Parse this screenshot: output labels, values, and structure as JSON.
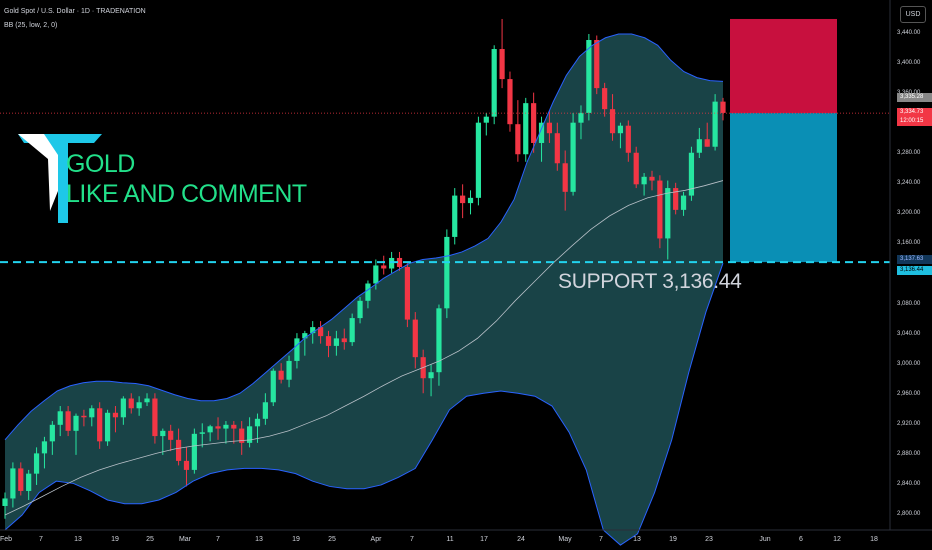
{
  "header": {
    "title": "Gold Spot / U.S. Dollar · 1D · TRADENATION",
    "indicator": "BB (25, low, 2, 0)"
  },
  "overlay": {
    "line1": "GOLD",
    "line2": "LIKE AND COMMENT",
    "support_text": "SUPPORT  3,136.44"
  },
  "axis": {
    "currency": "USD",
    "y_ticks": [
      "3,440.00",
      "3,400.00",
      "3,360.00",
      "3,280.00",
      "3,240.00",
      "3,200.00",
      "3,160.00",
      "3,080.00",
      "3,040.00",
      "3,000.00",
      "2,960.00",
      "2,920.00",
      "2,880.00",
      "2,840.00",
      "2,800.00"
    ],
    "x_ticks": [
      "Feb",
      "7",
      "13",
      "19",
      "25",
      "Mar",
      "7",
      "13",
      "19",
      "25",
      "Apr",
      "7",
      "11",
      "17",
      "24",
      "May",
      "7",
      "13",
      "19",
      "23",
      "Jun",
      "6",
      "12",
      "18"
    ]
  },
  "price_tags": {
    "current_price": "3,334.73",
    "countdown": "12:00:15",
    "upper_tag": "3,335.28",
    "band_tag": "3,137.63",
    "support_tag": "3,136.44"
  },
  "colors": {
    "bull": "#26e6a0",
    "bear": "#f23645",
    "band_fill": "#1c4a4f",
    "band_line": "#2962ff",
    "support_line": "#22d3ee",
    "stop_zone": "#c8103e",
    "target_zone": "#0a8fb5"
  },
  "chart_data": {
    "type": "candlestick",
    "title": "Gold Spot / U.S. Dollar · 1D · TRADENATION",
    "ylabel": "USD",
    "ylim": [
      2790,
      3465
    ],
    "support_level": 3136.44,
    "current_price": 3334.73,
    "position": {
      "entry": 3334.73,
      "stop": 3460,
      "target": 3136.44,
      "side": "short"
    },
    "ohlc": [
      {
        "o": 2812,
        "h": 2830,
        "l": 2795,
        "c": 2822
      },
      {
        "o": 2822,
        "h": 2870,
        "l": 2810,
        "c": 2862
      },
      {
        "o": 2862,
        "h": 2870,
        "l": 2826,
        "c": 2832
      },
      {
        "o": 2832,
        "h": 2860,
        "l": 2820,
        "c": 2855
      },
      {
        "o": 2855,
        "h": 2890,
        "l": 2840,
        "c": 2882
      },
      {
        "o": 2882,
        "h": 2904,
        "l": 2862,
        "c": 2898
      },
      {
        "o": 2898,
        "h": 2925,
        "l": 2880,
        "c": 2920
      },
      {
        "o": 2920,
        "h": 2945,
        "l": 2905,
        "c": 2938
      },
      {
        "o": 2938,
        "h": 2945,
        "l": 2905,
        "c": 2912
      },
      {
        "o": 2912,
        "h": 2935,
        "l": 2880,
        "c": 2932
      },
      {
        "o": 2932,
        "h": 2940,
        "l": 2918,
        "c": 2930
      },
      {
        "o": 2930,
        "h": 2946,
        "l": 2918,
        "c": 2942
      },
      {
        "o": 2942,
        "h": 2950,
        "l": 2888,
        "c": 2898
      },
      {
        "o": 2898,
        "h": 2940,
        "l": 2892,
        "c": 2936
      },
      {
        "o": 2936,
        "h": 2945,
        "l": 2910,
        "c": 2930
      },
      {
        "o": 2930,
        "h": 2958,
        "l": 2920,
        "c": 2955
      },
      {
        "o": 2955,
        "h": 2962,
        "l": 2935,
        "c": 2942
      },
      {
        "o": 2942,
        "h": 2958,
        "l": 2932,
        "c": 2950
      },
      {
        "o": 2950,
        "h": 2962,
        "l": 2945,
        "c": 2955
      },
      {
        "o": 2955,
        "h": 2962,
        "l": 2895,
        "c": 2905
      },
      {
        "o": 2905,
        "h": 2915,
        "l": 2880,
        "c": 2912
      },
      {
        "o": 2912,
        "h": 2920,
        "l": 2885,
        "c": 2900
      },
      {
        "o": 2900,
        "h": 2915,
        "l": 2866,
        "c": 2872
      },
      {
        "o": 2872,
        "h": 2890,
        "l": 2838,
        "c": 2860
      },
      {
        "o": 2860,
        "h": 2915,
        "l": 2855,
        "c": 2908
      },
      {
        "o": 2908,
        "h": 2922,
        "l": 2890,
        "c": 2910
      },
      {
        "o": 2910,
        "h": 2920,
        "l": 2898,
        "c": 2918
      },
      {
        "o": 2918,
        "h": 2930,
        "l": 2900,
        "c": 2915
      },
      {
        "o": 2915,
        "h": 2925,
        "l": 2895,
        "c": 2920
      },
      {
        "o": 2920,
        "h": 2925,
        "l": 2895,
        "c": 2915
      },
      {
        "o": 2915,
        "h": 2925,
        "l": 2880,
        "c": 2896
      },
      {
        "o": 2896,
        "h": 2930,
        "l": 2890,
        "c": 2918
      },
      {
        "o": 2918,
        "h": 2935,
        "l": 2896,
        "c": 2928
      },
      {
        "o": 2928,
        "h": 2962,
        "l": 2920,
        "c": 2950
      },
      {
        "o": 2950,
        "h": 2995,
        "l": 2945,
        "c": 2992
      },
      {
        "o": 2992,
        "h": 3002,
        "l": 2975,
        "c": 2980
      },
      {
        "o": 2980,
        "h": 3012,
        "l": 2970,
        "c": 3005
      },
      {
        "o": 3005,
        "h": 3042,
        "l": 2995,
        "c": 3035
      },
      {
        "o": 3035,
        "h": 3045,
        "l": 3012,
        "c": 3042
      },
      {
        "o": 3042,
        "h": 3058,
        "l": 3028,
        "c": 3050
      },
      {
        "o": 3050,
        "h": 3058,
        "l": 3028,
        "c": 3038
      },
      {
        "o": 3038,
        "h": 3045,
        "l": 3010,
        "c": 3025
      },
      {
        "o": 3025,
        "h": 3045,
        "l": 3012,
        "c": 3035
      },
      {
        "o": 3035,
        "h": 3048,
        "l": 3020,
        "c": 3030
      },
      {
        "o": 3030,
        "h": 3068,
        "l": 3025,
        "c": 3062
      },
      {
        "o": 3062,
        "h": 3090,
        "l": 3055,
        "c": 3085
      },
      {
        "o": 3085,
        "h": 3112,
        "l": 3075,
        "c": 3108
      },
      {
        "o": 3108,
        "h": 3140,
        "l": 3100,
        "c": 3132
      },
      {
        "o": 3132,
        "h": 3145,
        "l": 3120,
        "c": 3128
      },
      {
        "o": 3128,
        "h": 3150,
        "l": 3122,
        "c": 3142
      },
      {
        "o": 3142,
        "h": 3150,
        "l": 3125,
        "c": 3130
      },
      {
        "o": 3130,
        "h": 3135,
        "l": 3050,
        "c": 3060
      },
      {
        "o": 3060,
        "h": 3070,
        "l": 2995,
        "c": 3010
      },
      {
        "o": 3010,
        "h": 3020,
        "l": 2962,
        "c": 2982
      },
      {
        "o": 2982,
        "h": 3000,
        "l": 2958,
        "c": 2990
      },
      {
        "o": 2990,
        "h": 3080,
        "l": 2972,
        "c": 3075
      },
      {
        "o": 3075,
        "h": 3180,
        "l": 3062,
        "c": 3170
      },
      {
        "o": 3170,
        "h": 3235,
        "l": 3160,
        "c": 3225
      },
      {
        "o": 3225,
        "h": 3240,
        "l": 3195,
        "c": 3215
      },
      {
        "o": 3215,
        "h": 3232,
        "l": 3200,
        "c": 3222
      },
      {
        "o": 3222,
        "h": 3330,
        "l": 3212,
        "c": 3322
      },
      {
        "o": 3322,
        "h": 3335,
        "l": 3305,
        "c": 3330
      },
      {
        "o": 3330,
        "h": 3425,
        "l": 3320,
        "c": 3420
      },
      {
        "o": 3420,
        "h": 3500,
        "l": 3368,
        "c": 3380
      },
      {
        "o": 3380,
        "h": 3390,
        "l": 3310,
        "c": 3320
      },
      {
        "o": 3320,
        "h": 3352,
        "l": 3270,
        "c": 3280
      },
      {
        "o": 3280,
        "h": 3355,
        "l": 3270,
        "c": 3348
      },
      {
        "o": 3348,
        "h": 3362,
        "l": 3282,
        "c": 3295
      },
      {
        "o": 3295,
        "h": 3330,
        "l": 3270,
        "c": 3322
      },
      {
        "o": 3322,
        "h": 3338,
        "l": 3295,
        "c": 3308
      },
      {
        "o": 3308,
        "h": 3322,
        "l": 3258,
        "c": 3268
      },
      {
        "o": 3268,
        "h": 3285,
        "l": 3205,
        "c": 3230
      },
      {
        "o": 3230,
        "h": 3335,
        "l": 3225,
        "c": 3322
      },
      {
        "o": 3322,
        "h": 3345,
        "l": 3300,
        "c": 3335
      },
      {
        "o": 3335,
        "h": 3440,
        "l": 3325,
        "c": 3432
      },
      {
        "o": 3432,
        "h": 3438,
        "l": 3360,
        "c": 3368
      },
      {
        "o": 3368,
        "h": 3375,
        "l": 3330,
        "c": 3340
      },
      {
        "o": 3340,
        "h": 3360,
        "l": 3298,
        "c": 3308
      },
      {
        "o": 3308,
        "h": 3322,
        "l": 3288,
        "c": 3318
      },
      {
        "o": 3318,
        "h": 3325,
        "l": 3270,
        "c": 3282
      },
      {
        "o": 3282,
        "h": 3290,
        "l": 3235,
        "c": 3240
      },
      {
        "o": 3240,
        "h": 3255,
        "l": 3225,
        "c": 3250
      },
      {
        "o": 3250,
        "h": 3258,
        "l": 3232,
        "c": 3245
      },
      {
        "o": 3245,
        "h": 3252,
        "l": 3155,
        "c": 3168
      },
      {
        "o": 3168,
        "h": 3245,
        "l": 3140,
        "c": 3235
      },
      {
        "o": 3235,
        "h": 3242,
        "l": 3200,
        "c": 3206
      },
      {
        "o": 3206,
        "h": 3230,
        "l": 3198,
        "c": 3225
      },
      {
        "o": 3225,
        "h": 3290,
        "l": 3218,
        "c": 3282
      },
      {
        "o": 3282,
        "h": 3315,
        "l": 3275,
        "c": 3300
      },
      {
        "o": 3300,
        "h": 3322,
        "l": 3290,
        "c": 3290
      },
      {
        "o": 3290,
        "h": 3360,
        "l": 3285,
        "c": 3350
      },
      {
        "o": 3350,
        "h": 3355,
        "l": 3325,
        "c": 3335
      }
    ],
    "bb_upper": [
      2900,
      2920,
      2938,
      2952,
      2965,
      2972,
      2976,
      2978,
      2978,
      2976,
      2975,
      2972,
      2966,
      2960,
      2955,
      2952,
      2952,
      2955,
      2962,
      2975,
      2990,
      3005,
      3020,
      3036,
      3048,
      3060,
      3075,
      3090,
      3102,
      3115,
      3125,
      3135,
      3140,
      3142,
      3145,
      3150,
      3158,
      3168,
      3190,
      3220,
      3270,
      3310,
      3350,
      3385,
      3410,
      3425,
      3435,
      3440,
      3440,
      3435,
      3425,
      3405,
      3390,
      3382,
      3378,
      3377
    ],
    "bb_upper_x": [
      0,
      8,
      16,
      24,
      32,
      40,
      48,
      56,
      64,
      72,
      80,
      88,
      96,
      104,
      112,
      120,
      128,
      136,
      144,
      152,
      160,
      168,
      176,
      184,
      192,
      200,
      208,
      216,
      224,
      232,
      240,
      248,
      256,
      264,
      272,
      280,
      288,
      296,
      304,
      312,
      320,
      328,
      336,
      344,
      352,
      360,
      368,
      376,
      384,
      392,
      400,
      408,
      416,
      424,
      432,
      440
    ],
    "bb_mid": [
      2800,
      2812,
      2825,
      2838,
      2850,
      2860,
      2868,
      2875,
      2882,
      2888,
      2892,
      2895,
      2898,
      2900,
      2905,
      2912,
      2922,
      2932,
      2945,
      2958,
      2972,
      2985,
      2995,
      3005,
      3018,
      3035,
      3058,
      3085,
      3110,
      3135,
      3158,
      3180,
      3198,
      3212,
      3222,
      3228,
      3232,
      3238,
      3245
    ],
    "bb_lower": [
      2780,
      2800,
      2830,
      2845,
      2842,
      2832,
      2820,
      2815,
      2815,
      2820,
      2830,
      2845,
      2855,
      2860,
      2862,
      2862,
      2860,
      2855,
      2845,
      2838,
      2835,
      2835,
      2840,
      2850,
      2862,
      2900,
      2940,
      2958,
      2962,
      2965,
      2962,
      2958,
      2945,
      2910,
      2860,
      2780,
      2760,
      2775,
      2830,
      2900,
      2990,
      3070,
      3135
    ]
  }
}
